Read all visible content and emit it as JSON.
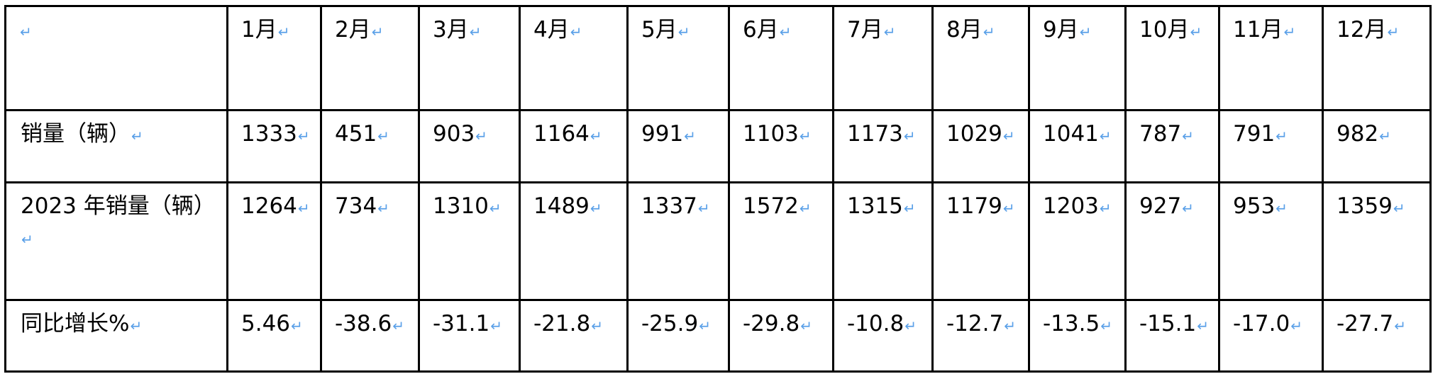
{
  "table": {
    "corner": "",
    "headers": [
      "1月",
      "2月",
      "3月",
      "4月",
      "5月",
      "6月",
      "7月",
      "8月",
      "9月",
      "10月",
      "11月",
      "12月"
    ],
    "rows": [
      {
        "label": "销量（辆）",
        "values": [
          "1333",
          "451",
          "903",
          "1164",
          "991",
          "1103",
          "1173",
          "1029",
          "1041",
          "787",
          "791",
          "982"
        ]
      },
      {
        "label": "2023 年销量（辆）",
        "values": [
          "1264",
          "734",
          "1310",
          "1489",
          "1337",
          "1572",
          "1315",
          "1179",
          "1203",
          "927",
          "953",
          "1359"
        ]
      },
      {
        "label": "同比增长%",
        "values": [
          "5.46",
          "-38.6",
          "-31.1",
          "-21.8",
          "-25.9",
          "-29.8",
          "-10.8",
          "-12.7",
          "-13.5",
          "-15.1",
          "-17.0",
          "-27.7"
        ]
      }
    ]
  },
  "colors": {
    "paragraph_mark": "#5aa0e8",
    "border": "#000000"
  },
  "icons": {
    "paragraph_mark": "return-arrow-icon"
  }
}
